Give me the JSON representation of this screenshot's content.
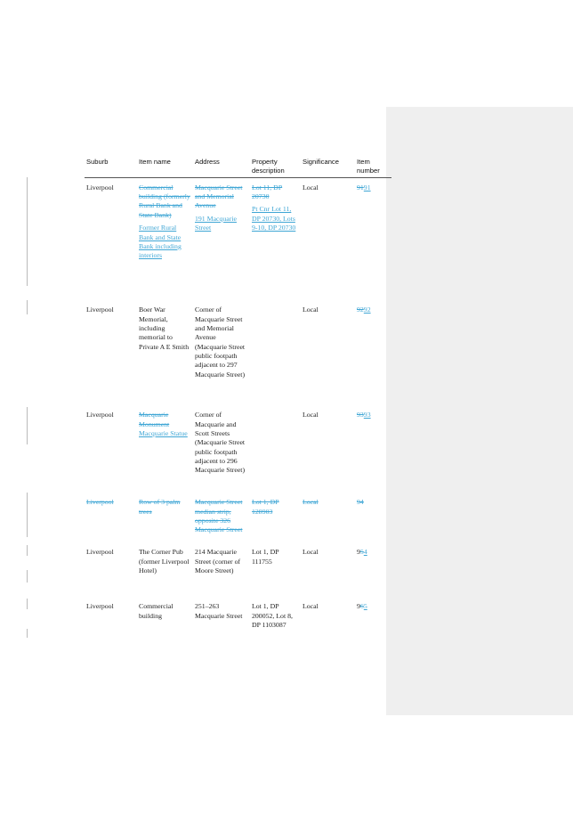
{
  "headers": {
    "suburb": "Suburb",
    "item_name": "Item name",
    "address": "Address",
    "property": "Property description",
    "significance": "Significance",
    "item_number": "Item number"
  },
  "rows": [
    {
      "suburb": "Liverpool",
      "name_del": "Commercial building (formerly Rural Bank and State Bank)",
      "name_ins": "Former Rural Bank and State Bank including interiors",
      "addr_del": "Macquarie Street and Memorial Avenue",
      "addr_ins": "191 Macquarie Street",
      "prop_del": "Lot 11, DP 20730",
      "prop_ins": "Pt Cnr Lot 11, DP 20730, Lots 9-10, DP 20730",
      "significance": "Local",
      "num_old": "91",
      "num_new": "91"
    },
    {
      "suburb": "Liverpool",
      "name": "Boer War Memorial, including memorial to Private A E Smith",
      "addr": "Corner of Macquarie Street and Memorial Avenue (Macquarie Street public footpath adjacent to 297 Macquarie Street)",
      "significance": "Local",
      "num_old": "92",
      "num_new": "92"
    },
    {
      "suburb": "Liverpool",
      "name_del": "Macquarie Monument",
      "name_ins": "Macquarie Statue",
      "addr": "Corner of Macquarie and Scott Streets (Macquarie Street public footpath adjacent to 296 Macquarie Street)",
      "significance": "Local",
      "num_old": "93",
      "num_new": "93"
    },
    {
      "suburb": "Liverpool",
      "name": "Row of 3 palm trees",
      "addr": "Macquarie Street median strip, opposite 326 Macquarie Street",
      "prop": "Lot 1, DP 128903",
      "significance": "Local",
      "num": "94"
    },
    {
      "suburb": "Liverpool",
      "name": "The Corner Pub (former Liverpool Hotel)",
      "addr": "214 Macquarie Street (corner of Moore Street)",
      "prop": "Lot 1, DP 111755",
      "significance": "Local",
      "num_prefix": "9",
      "num_old": "5",
      "num_new": "4"
    },
    {
      "suburb": "Liverpool",
      "name": "Commercial building",
      "addr": "251–263 Macquarie Street",
      "prop": "Lot 1, DP 200052, Lot 8, DP 1103087",
      "significance": "Local",
      "num_prefix": "9",
      "num_old": "6",
      "num_new": "5"
    }
  ]
}
